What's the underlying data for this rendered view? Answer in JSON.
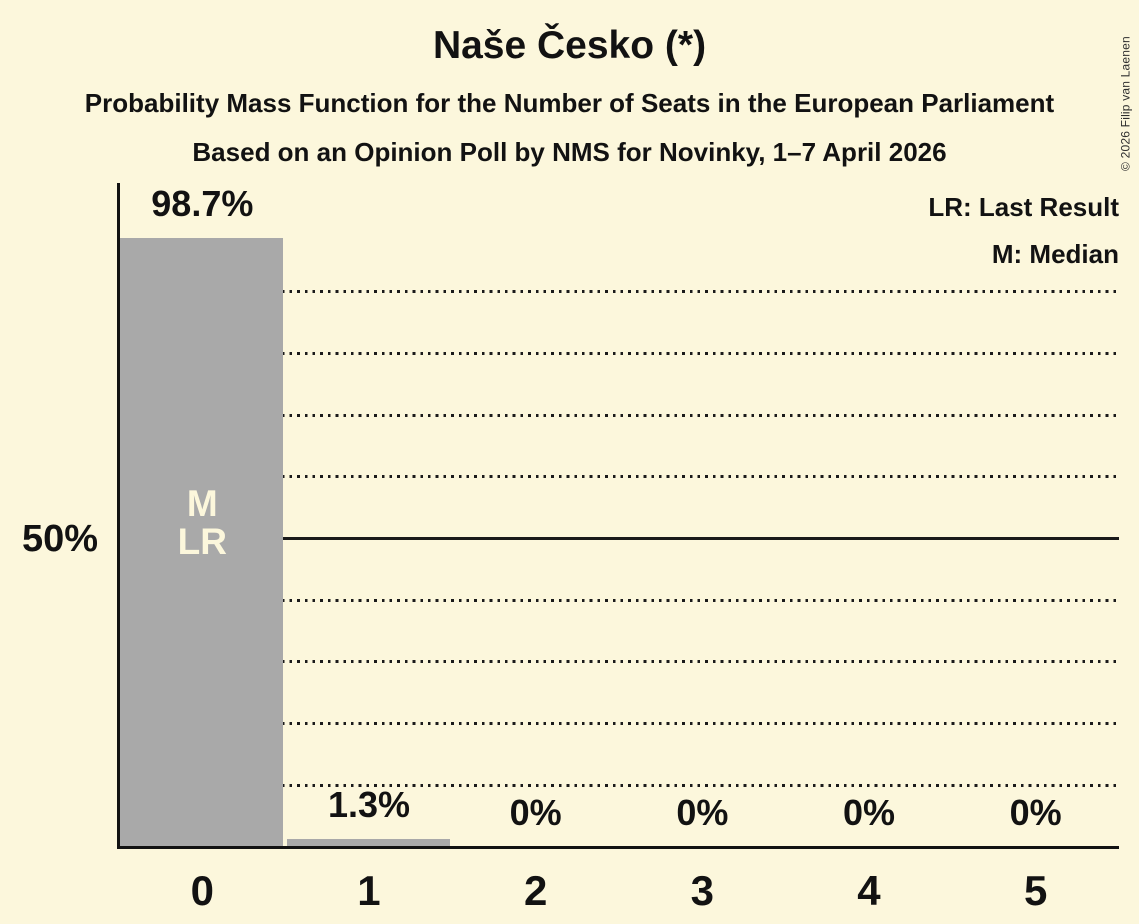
{
  "header": {
    "title": "Naše Česko (*)",
    "subtitle": "Probability Mass Function for the Number of Seats in the European Parliament",
    "source_line": "Based on an Opinion Poll by NMS for Novinky, 1–7 April 2026"
  },
  "legend": {
    "last_result": "LR: Last Result",
    "median": "M: Median"
  },
  "copyright": "© 2026 Filip van Laenen",
  "colors": {
    "background": "#FCF7DC",
    "bar": "#A9A9A9",
    "text": "#121212",
    "bar_label_text": "#FCF7DC"
  },
  "chart_data": {
    "type": "bar",
    "title": "Naše Česko (*)",
    "xlabel": "",
    "ylabel": "",
    "categories": [
      "0",
      "1",
      "2",
      "3",
      "4",
      "5"
    ],
    "values": [
      98.7,
      1.3,
      0,
      0,
      0,
      0
    ],
    "value_labels": [
      "98.7%",
      "1.3%",
      "0%",
      "0%",
      "0%",
      "0%"
    ],
    "bar_markers": [
      [
        "M",
        "LR"
      ],
      [],
      [],
      [],
      [],
      []
    ],
    "ylim": [
      0,
      100
    ],
    "y_tick": {
      "percent": 50,
      "label": "50%"
    },
    "dotted_gridlines_percent": [
      90,
      80,
      70,
      60,
      40,
      30,
      20,
      10
    ],
    "solid_gridline_percent": 50,
    "grid": true,
    "legend_position": "top-right",
    "legend_entries": [
      "LR: Last Result",
      "M: Median"
    ]
  }
}
